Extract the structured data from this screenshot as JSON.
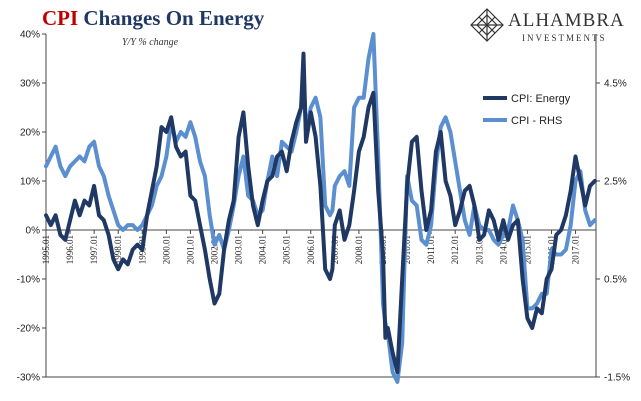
{
  "header": {
    "title_accent": "CPI",
    "title_rest": " Changes On Energy",
    "subtitle": "Y/Y % change"
  },
  "logo": {
    "brand": "ALHAMBRA",
    "sub": "INVESTMENTS",
    "icon": "diamond-lattice-icon"
  },
  "colors": {
    "energy": "#1f3864",
    "cpi": "#5b8fd0"
  },
  "chart_data": {
    "type": "line",
    "grid": false,
    "legend_position": "top-right",
    "left_axis": {
      "range": [
        -30,
        40
      ],
      "ticks": [
        -30,
        -20,
        -10,
        0,
        10,
        20,
        30,
        40
      ],
      "tick_labels": [
        "-30%",
        "-20%",
        "-10%",
        "0%",
        "10%",
        "20%",
        "30%",
        "40%"
      ]
    },
    "right_axis": {
      "range": [
        -1.5,
        5.5
      ],
      "ticks": [
        -1.5,
        0.5,
        2.5,
        4.5
      ],
      "tick_labels": [
        "-1.5%",
        "0.5%",
        "2.5%",
        "4.5%"
      ]
    },
    "x_axis": {
      "range": [
        1995.0,
        2017.85
      ],
      "ticks": [
        1995,
        1996,
        1997,
        1998,
        1999,
        2000,
        2001,
        2002,
        2003,
        2004,
        2005,
        2006,
        2007,
        2008,
        2009,
        2010,
        2011,
        2012,
        2013,
        2014,
        2015,
        2016,
        2017
      ],
      "tick_labels": [
        "1995.01",
        "1996.01",
        "1997.01",
        "1998.01",
        "1999.01",
        "2000.01",
        "2001.01",
        "2002.01",
        "2003.01",
        "2004.01",
        "2005.01",
        "2006.01",
        "2007.01",
        "2008.01",
        "2009.01",
        "2010.01",
        "2011.01",
        "2012.01",
        "2013.01",
        "2014.01",
        "2015.01",
        "2016.01",
        "2017.01"
      ]
    },
    "series": [
      {
        "name": "CPI: Energy",
        "axis": "left",
        "x": [
          1995.0,
          1995.2,
          1995.4,
          1995.6,
          1995.8,
          1996.0,
          1996.2,
          1996.4,
          1996.6,
          1996.8,
          1997.0,
          1997.2,
          1997.4,
          1997.6,
          1997.8,
          1998.0,
          1998.2,
          1998.4,
          1998.6,
          1998.8,
          1999.0,
          1999.2,
          1999.4,
          1999.6,
          1999.8,
          2000.0,
          2000.2,
          2000.4,
          2000.6,
          2000.8,
          2001.0,
          2001.2,
          2001.4,
          2001.6,
          2001.8,
          2002.0,
          2002.2,
          2002.4,
          2002.6,
          2002.8,
          2003.0,
          2003.2,
          2003.4,
          2003.6,
          2003.8,
          2004.0,
          2004.2,
          2004.4,
          2004.6,
          2004.8,
          2005.0,
          2005.2,
          2005.4,
          2005.6,
          2005.7,
          2005.8,
          2006.0,
          2006.2,
          2006.4,
          2006.6,
          2006.8,
          2006.9,
          2007.0,
          2007.2,
          2007.4,
          2007.6,
          2007.8,
          2008.0,
          2008.2,
          2008.4,
          2008.6,
          2008.8,
          2009.0,
          2009.1,
          2009.2,
          2009.4,
          2009.6,
          2009.8,
          2010.0,
          2010.2,
          2010.4,
          2010.6,
          2010.8,
          2011.0,
          2011.2,
          2011.4,
          2011.6,
          2011.8,
          2012.0,
          2012.2,
          2012.4,
          2012.6,
          2012.8,
          2013.0,
          2013.2,
          2013.4,
          2013.6,
          2013.8,
          2014.0,
          2014.2,
          2014.4,
          2014.6,
          2014.8,
          2015.0,
          2015.2,
          2015.4,
          2015.6,
          2015.8,
          2016.0,
          2016.2,
          2016.4,
          2016.6,
          2016.8,
          2017.0,
          2017.2,
          2017.4,
          2017.6,
          2017.8
        ],
        "values": [
          3,
          1,
          3,
          -1,
          -2,
          2,
          6,
          3,
          6,
          5,
          9,
          3,
          2,
          -1,
          -6,
          -8,
          -6,
          -7,
          -4,
          -3,
          -4,
          3,
          8,
          13,
          21,
          20,
          23,
          17,
          15,
          16,
          7,
          6,
          1,
          -4,
          -10,
          -15,
          -13,
          -4,
          2,
          6,
          19,
          24,
          13,
          5,
          1,
          6,
          10,
          11,
          15,
          16,
          12,
          18,
          22,
          25,
          36,
          18,
          24,
          19,
          9,
          -8,
          -10,
          -8,
          1,
          4,
          -2,
          1,
          8,
          16,
          19,
          25,
          28,
          8,
          -5,
          -22,
          -20,
          -25,
          -29,
          -10,
          9,
          18,
          19,
          8,
          0,
          4,
          16,
          20,
          10,
          7,
          1,
          4,
          8,
          9,
          5,
          -2,
          -1,
          4,
          2,
          -2,
          2,
          -2,
          1,
          2,
          -10,
          -18,
          -20,
          -16,
          -17,
          -10,
          -8,
          -1,
          0,
          3,
          8,
          15,
          10,
          5,
          9,
          10
        ]
      },
      {
        "name": "CPI - RHS",
        "axis": "right",
        "x": [
          1995.0,
          1995.2,
          1995.4,
          1995.6,
          1995.8,
          1996.0,
          1996.2,
          1996.4,
          1996.6,
          1996.8,
          1997.0,
          1997.2,
          1997.4,
          1997.6,
          1997.8,
          1998.0,
          1998.2,
          1998.4,
          1998.6,
          1998.8,
          1999.0,
          1999.2,
          1999.4,
          1999.6,
          1999.8,
          2000.0,
          2000.2,
          2000.4,
          2000.6,
          2000.8,
          2001.0,
          2001.2,
          2001.4,
          2001.6,
          2001.8,
          2002.0,
          2002.2,
          2002.4,
          2002.6,
          2002.8,
          2003.0,
          2003.2,
          2003.4,
          2003.6,
          2003.8,
          2004.0,
          2004.2,
          2004.4,
          2004.6,
          2004.8,
          2005.0,
          2005.2,
          2005.4,
          2005.6,
          2005.7,
          2005.8,
          2006.0,
          2006.2,
          2006.4,
          2006.6,
          2006.8,
          2006.9,
          2007.0,
          2007.2,
          2007.4,
          2007.6,
          2007.8,
          2008.0,
          2008.2,
          2008.4,
          2008.6,
          2008.8,
          2009.0,
          2009.1,
          2009.2,
          2009.4,
          2009.6,
          2009.8,
          2010.0,
          2010.2,
          2010.4,
          2010.6,
          2010.8,
          2011.0,
          2011.2,
          2011.4,
          2011.6,
          2011.8,
          2012.0,
          2012.2,
          2012.4,
          2012.6,
          2012.8,
          2013.0,
          2013.2,
          2013.4,
          2013.6,
          2013.8,
          2014.0,
          2014.2,
          2014.4,
          2014.6,
          2014.8,
          2015.0,
          2015.2,
          2015.4,
          2015.6,
          2015.8,
          2016.0,
          2016.2,
          2016.4,
          2016.6,
          2016.8,
          2017.0,
          2017.2,
          2017.4,
          2017.6,
          2017.8
        ],
        "values": [
          2.8,
          3.0,
          3.2,
          2.8,
          2.6,
          2.8,
          2.9,
          3.0,
          2.9,
          3.2,
          3.3,
          2.8,
          2.6,
          2.2,
          1.9,
          1.6,
          1.5,
          1.6,
          1.6,
          1.5,
          1.6,
          1.8,
          2.0,
          2.4,
          2.6,
          3.0,
          3.7,
          3.3,
          3.5,
          3.4,
          3.7,
          3.4,
          2.9,
          2.6,
          1.8,
          1.2,
          1.4,
          1.1,
          1.5,
          2.0,
          2.6,
          3.0,
          2.2,
          2.1,
          1.8,
          1.9,
          2.5,
          3.0,
          2.6,
          3.3,
          3.2,
          3.1,
          3.5,
          4.0,
          4.7,
          3.5,
          4.0,
          4.2,
          3.8,
          2.0,
          1.8,
          1.9,
          2.4,
          2.6,
          2.7,
          2.4,
          4.0,
          4.2,
          4.2,
          5.0,
          5.5,
          3.0,
          0.0,
          -0.4,
          -0.6,
          -1.4,
          -1.6,
          -0.8,
          2.6,
          2.1,
          2.0,
          1.3,
          1.2,
          1.6,
          2.8,
          3.6,
          3.8,
          3.5,
          2.9,
          2.3,
          1.7,
          1.4,
          2.0,
          1.6,
          1.5,
          1.5,
          1.3,
          1.2,
          1.4,
          1.5,
          2.0,
          1.7,
          1.3,
          -0.1,
          -0.1,
          0.0,
          0.2,
          0.2,
          1.1,
          1.0,
          1.0,
          1.1,
          1.6,
          2.5,
          2.7,
          1.9,
          1.6,
          1.7
        ]
      }
    ]
  }
}
